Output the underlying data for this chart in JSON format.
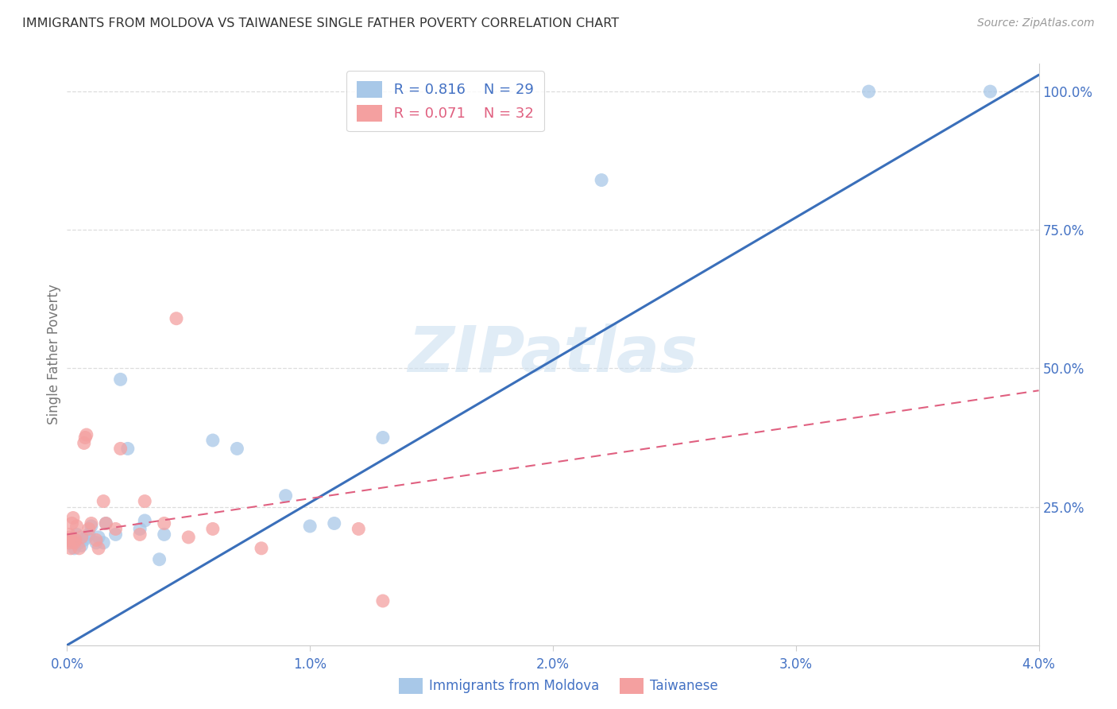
{
  "title": "IMMIGRANTS FROM MOLDOVA VS TAIWANESE SINGLE FATHER POVERTY CORRELATION CHART",
  "source": "Source: ZipAtlas.com",
  "xlabel_blue": "Immigrants from Moldova",
  "xlabel_pink": "Taiwanese",
  "ylabel": "Single Father Poverty",
  "xlim": [
    0.0,
    0.04
  ],
  "ylim": [
    0.0,
    1.05
  ],
  "xtick_labels": [
    "0.0%",
    "1.0%",
    "2.0%",
    "3.0%",
    "4.0%"
  ],
  "xtick_values": [
    0.0,
    0.01,
    0.02,
    0.03,
    0.04
  ],
  "ytick_labels": [
    "25.0%",
    "50.0%",
    "75.0%",
    "100.0%"
  ],
  "ytick_values": [
    0.25,
    0.5,
    0.75,
    1.0
  ],
  "blue_color": "#a8c8e8",
  "pink_color": "#f4a0a0",
  "blue_line_color": "#3a6fba",
  "pink_line_color": "#e06080",
  "title_color": "#333333",
  "axis_label_color": "#4472c4",
  "legend_blue_R": "0.816",
  "legend_blue_N": "29",
  "legend_pink_R": "0.071",
  "legend_pink_N": "32",
  "watermark": "ZIPatlas",
  "blue_scatter_x": [
    0.0002,
    0.0003,
    0.0004,
    0.0005,
    0.0006,
    0.0007,
    0.0008,
    0.0009,
    0.001,
    0.0012,
    0.0013,
    0.0015,
    0.0016,
    0.002,
    0.0022,
    0.0025,
    0.003,
    0.0032,
    0.0038,
    0.004,
    0.006,
    0.007,
    0.009,
    0.01,
    0.011,
    0.013,
    0.022,
    0.033,
    0.038
  ],
  "blue_scatter_y": [
    0.19,
    0.175,
    0.2,
    0.185,
    0.18,
    0.19,
    0.195,
    0.2,
    0.215,
    0.185,
    0.195,
    0.185,
    0.22,
    0.2,
    0.48,
    0.355,
    0.21,
    0.225,
    0.155,
    0.2,
    0.37,
    0.355,
    0.27,
    0.215,
    0.22,
    0.375,
    0.84,
    1.0,
    1.0
  ],
  "pink_scatter_x": [
    5e-05,
    8e-05,
    0.0001,
    0.00012,
    0.00015,
    0.0002,
    0.00025,
    0.0003,
    0.00035,
    0.0004,
    0.0005,
    0.0006,
    0.0007,
    0.00075,
    0.0008,
    0.0009,
    0.001,
    0.0012,
    0.0013,
    0.0015,
    0.0016,
    0.002,
    0.0022,
    0.003,
    0.0032,
    0.004,
    0.0045,
    0.005,
    0.006,
    0.008,
    0.012,
    0.013
  ],
  "pink_scatter_y": [
    0.19,
    0.2,
    0.185,
    0.195,
    0.175,
    0.22,
    0.23,
    0.185,
    0.19,
    0.215,
    0.175,
    0.195,
    0.365,
    0.375,
    0.38,
    0.21,
    0.22,
    0.19,
    0.175,
    0.26,
    0.22,
    0.21,
    0.355,
    0.2,
    0.26,
    0.22,
    0.59,
    0.195,
    0.21,
    0.175,
    0.21,
    0.08
  ],
  "blue_trendline_x": [
    0.0,
    0.04
  ],
  "blue_trendline_y": [
    0.0,
    1.03
  ],
  "pink_trendline_x": [
    0.0,
    0.04
  ],
  "pink_trendline_y": [
    0.2,
    0.46
  ],
  "background_color": "#ffffff",
  "grid_color": "#dddddd",
  "spine_color": "#cccccc"
}
